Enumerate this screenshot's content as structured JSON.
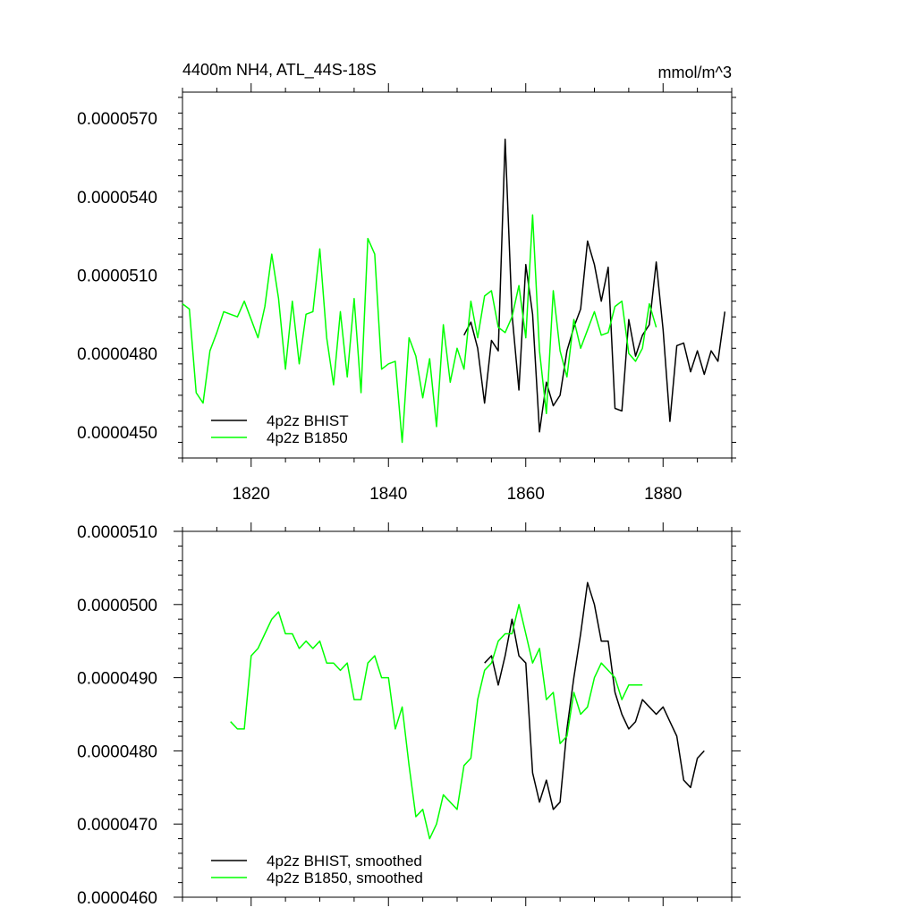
{
  "chart_data": [
    {
      "type": "line",
      "title": "4400m NH4, ATL_44S-18S",
      "units_label": "mmol/m^3",
      "xlabel": "",
      "ylabel": "",
      "xlim": [
        1810,
        1890
      ],
      "ylim": [
        4.4e-05,
        5.8e-05
      ],
      "x_ticks": [
        1820,
        1840,
        1860,
        1880
      ],
      "x_tick_labels": [
        "1820",
        "1840",
        "1860",
        "1880"
      ],
      "y_ticks": [
        4.5e-05,
        4.8e-05,
        5.1e-05,
        5.4e-05,
        5.7e-05
      ],
      "y_tick_labels": [
        "0.0000450",
        "0.0000480",
        "0.0000510",
        "0.0000540",
        "0.0000570"
      ],
      "legend_position": "bottom-left",
      "series": [
        {
          "name": "4p2z BHIST",
          "color": "#000000",
          "x": [
            1851,
            1852,
            1853,
            1854,
            1855,
            1856,
            1857,
            1858,
            1859,
            1860,
            1861,
            1862,
            1863,
            1864,
            1865,
            1866,
            1867,
            1868,
            1869,
            1870,
            1871,
            1872,
            1873,
            1874,
            1875,
            1876,
            1877,
            1878,
            1879,
            1880,
            1881,
            1882,
            1883,
            1884,
            1885,
            1886,
            1887,
            1888,
            1889
          ],
          "y": [
            4.87e-05,
            4.92e-05,
            4.82e-05,
            4.61e-05,
            4.85e-05,
            4.81e-05,
            5.62e-05,
            4.95e-05,
            4.66e-05,
            5.14e-05,
            4.95e-05,
            4.5e-05,
            4.69e-05,
            4.6e-05,
            4.64e-05,
            4.81e-05,
            4.9e-05,
            4.97e-05,
            5.23e-05,
            5.14e-05,
            5e-05,
            5.13e-05,
            4.59e-05,
            4.58e-05,
            4.93e-05,
            4.79e-05,
            4.87e-05,
            4.91e-05,
            5.15e-05,
            4.89e-05,
            4.54e-05,
            4.83e-05,
            4.84e-05,
            4.73e-05,
            4.81e-05,
            4.72e-05,
            4.81e-05,
            4.77e-05,
            4.96e-05
          ]
        },
        {
          "name": "4p2z B1850",
          "color": "#00ff00",
          "x": [
            1810,
            1811,
            1812,
            1813,
            1814,
            1815,
            1816,
            1817,
            1818,
            1819,
            1820,
            1821,
            1822,
            1823,
            1824,
            1825,
            1826,
            1827,
            1828,
            1829,
            1830,
            1831,
            1832,
            1833,
            1834,
            1835,
            1836,
            1837,
            1838,
            1839,
            1840,
            1841,
            1842,
            1843,
            1844,
            1845,
            1846,
            1847,
            1848,
            1849,
            1850,
            1851,
            1852,
            1853,
            1854,
            1855,
            1856,
            1857,
            1858,
            1859,
            1860,
            1861,
            1862,
            1863,
            1864,
            1865,
            1866,
            1867,
            1868,
            1869,
            1870,
            1871,
            1872,
            1873,
            1874,
            1875,
            1876,
            1877,
            1878,
            1879
          ],
          "y": [
            4.99e-05,
            4.97e-05,
            4.65e-05,
            4.61e-05,
            4.81e-05,
            4.88e-05,
            4.96e-05,
            4.95e-05,
            4.94e-05,
            5e-05,
            4.93e-05,
            4.86e-05,
            4.98e-05,
            5.18e-05,
            5.01e-05,
            4.74e-05,
            5e-05,
            4.76e-05,
            4.95e-05,
            4.96e-05,
            5.2e-05,
            4.86e-05,
            4.68e-05,
            4.96e-05,
            4.71e-05,
            5.01e-05,
            4.65e-05,
            5.24e-05,
            5.18e-05,
            4.74e-05,
            4.76e-05,
            4.77e-05,
            4.46e-05,
            4.86e-05,
            4.79e-05,
            4.63e-05,
            4.78e-05,
            4.52e-05,
            4.91e-05,
            4.69e-05,
            4.82e-05,
            4.74e-05,
            5e-05,
            4.86e-05,
            5.02e-05,
            5.04e-05,
            4.9e-05,
            4.88e-05,
            4.94e-05,
            5.06e-05,
            4.86e-05,
            5.33e-05,
            4.81e-05,
            4.57e-05,
            5.04e-05,
            4.81e-05,
            4.71e-05,
            4.93e-05,
            4.82e-05,
            4.89e-05,
            4.96e-05,
            4.87e-05,
            4.88e-05,
            4.98e-05,
            5e-05,
            4.8e-05,
            4.77e-05,
            4.82e-05,
            4.99e-05,
            4.9e-05
          ]
        }
      ]
    },
    {
      "type": "line",
      "title": "",
      "xlabel": "",
      "ylabel": "",
      "xlim": [
        1810,
        1890
      ],
      "ylim": [
        4.6e-05,
        5.1e-05
      ],
      "x_ticks": [
        1820,
        1840,
        1860,
        1880
      ],
      "x_tick_labels": [],
      "y_ticks": [
        4.6e-05,
        4.7e-05,
        4.8e-05,
        4.9e-05,
        5e-05,
        5.1e-05
      ],
      "y_tick_labels": [
        "0.0000460",
        "0.0000470",
        "0.0000480",
        "0.0000490",
        "0.0000500",
        "0.0000510"
      ],
      "legend_position": "bottom-left",
      "series": [
        {
          "name": "4p2z BHIST, smoothed",
          "color": "#000000",
          "x": [
            1854,
            1855,
            1856,
            1857,
            1858,
            1859,
            1860,
            1861,
            1862,
            1863,
            1864,
            1865,
            1866,
            1867,
            1868,
            1869,
            1870,
            1871,
            1872,
            1873,
            1874,
            1875,
            1876,
            1877,
            1878,
            1879,
            1880,
            1881,
            1882,
            1883,
            1884,
            1885,
            1886
          ],
          "y": [
            4.92e-05,
            4.93e-05,
            4.89e-05,
            4.93e-05,
            4.98e-05,
            4.93e-05,
            4.92e-05,
            4.77e-05,
            4.73e-05,
            4.76e-05,
            4.72e-05,
            4.73e-05,
            4.83e-05,
            4.9e-05,
            4.96e-05,
            5.03e-05,
            5e-05,
            4.95e-05,
            4.95e-05,
            4.88e-05,
            4.85e-05,
            4.83e-05,
            4.84e-05,
            4.87e-05,
            4.86e-05,
            4.85e-05,
            4.86e-05,
            4.84e-05,
            4.82e-05,
            4.76e-05,
            4.75e-05,
            4.79e-05,
            4.8e-05
          ]
        },
        {
          "name": "4p2z B1850, smoothed",
          "color": "#00ff00",
          "x": [
            1817,
            1818,
            1819,
            1820,
            1821,
            1822,
            1823,
            1824,
            1825,
            1826,
            1827,
            1828,
            1829,
            1830,
            1831,
            1832,
            1833,
            1834,
            1835,
            1836,
            1837,
            1838,
            1839,
            1840,
            1841,
            1842,
            1843,
            1844,
            1845,
            1846,
            1847,
            1848,
            1849,
            1850,
            1851,
            1852,
            1853,
            1854,
            1855,
            1856,
            1857,
            1858,
            1859,
            1860,
            1861,
            1862,
            1863,
            1864,
            1865,
            1866,
            1867,
            1868,
            1869,
            1870,
            1871,
            1872,
            1873,
            1874,
            1875,
            1876,
            1877
          ],
          "y": [
            4.84e-05,
            4.83e-05,
            4.83e-05,
            4.93e-05,
            4.94e-05,
            4.96e-05,
            4.98e-05,
            4.99e-05,
            4.96e-05,
            4.96e-05,
            4.94e-05,
            4.95e-05,
            4.94e-05,
            4.95e-05,
            4.92e-05,
            4.92e-05,
            4.91e-05,
            4.92e-05,
            4.87e-05,
            4.87e-05,
            4.92e-05,
            4.93e-05,
            4.9e-05,
            4.9e-05,
            4.83e-05,
            4.86e-05,
            4.78e-05,
            4.71e-05,
            4.72e-05,
            4.68e-05,
            4.7e-05,
            4.74e-05,
            4.73e-05,
            4.72e-05,
            4.78e-05,
            4.79e-05,
            4.87e-05,
            4.91e-05,
            4.92e-05,
            4.95e-05,
            4.96e-05,
            4.96e-05,
            5e-05,
            4.96e-05,
            4.92e-05,
            4.94e-05,
            4.87e-05,
            4.88e-05,
            4.81e-05,
            4.82e-05,
            4.88e-05,
            4.85e-05,
            4.86e-05,
            4.9e-05,
            4.92e-05,
            4.91e-05,
            4.9e-05,
            4.87e-05,
            4.89e-05,
            4.89e-05,
            4.89e-05
          ]
        }
      ]
    }
  ]
}
